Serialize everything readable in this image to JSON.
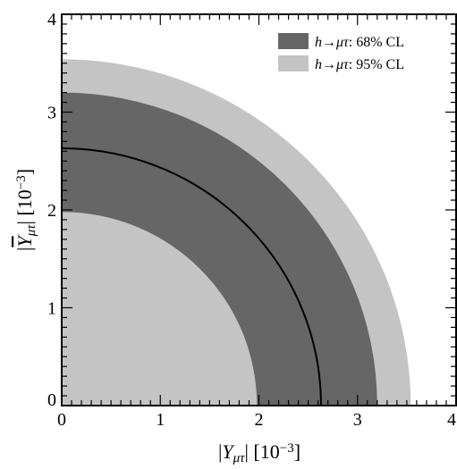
{
  "chart_data": {
    "type": "area",
    "xlabel": {
      "prefix": "|",
      "sym": "Y",
      "sub": "μτ",
      "mid": "| [10",
      "sup": "−3",
      "suffix": "]"
    },
    "ylabel": {
      "prefix": "|",
      "sym": "Y",
      "sub": "μτ",
      "mid": "| [10",
      "sup": "−3",
      "suffix": "]"
    },
    "xlim": [
      0,
      4
    ],
    "ylim": [
      0,
      4
    ],
    "x_ticks": [
      "0",
      "1",
      "2",
      "3",
      "4"
    ],
    "y_ticks": [
      "0",
      "1",
      "2",
      "3",
      "4"
    ],
    "minor_ticks_per_unit": 10,
    "grid": false,
    "legend_position": "top-right",
    "series": [
      {
        "name": {
          "label_h": "h",
          "label_arrow": "→",
          "label_mutau": "μτ",
          "label_rest": ": 95% CL"
        },
        "inner_radius": 0.0,
        "outer_radius": 3.54,
        "color": "#c4c4c4",
        "inner_fill": "#c4c4c4"
      },
      {
        "name": {
          "label_h": "h",
          "label_arrow": "→",
          "label_mutau": "μτ",
          "label_rest": ": 68% CL"
        },
        "inner_radius": 1.98,
        "outer_radius": 3.2,
        "color": "#666666"
      },
      {
        "name": "central",
        "radius": 2.63,
        "color": "#000000"
      }
    ],
    "inner_region_radius": 1.98
  }
}
